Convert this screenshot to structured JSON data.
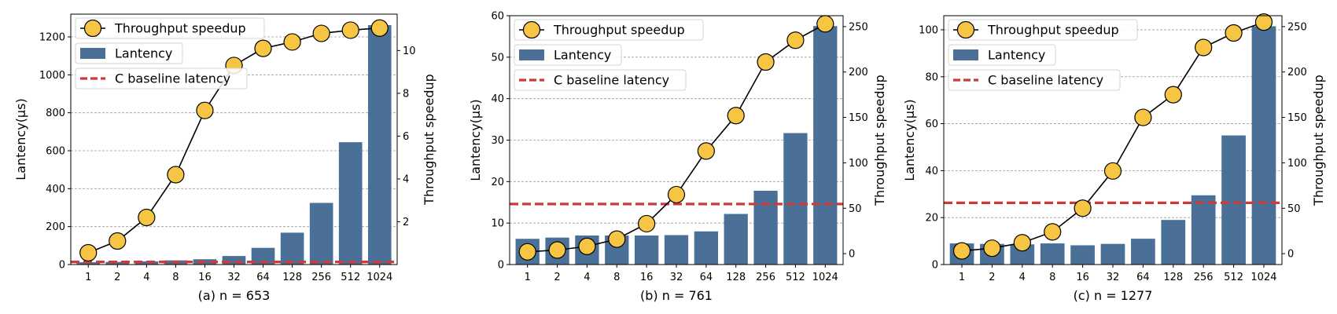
{
  "chart_data": [
    {
      "type": "bar",
      "caption": "(a) n = 653",
      "categories": [
        "1",
        "2",
        "4",
        "8",
        "16",
        "32",
        "64",
        "128",
        "256",
        "512",
        "1024"
      ],
      "ylabel": "Lantency(μs)",
      "y2label": "Throughput speedup",
      "ylim": [
        0,
        1320
      ],
      "y2lim": [
        0,
        11.7
      ],
      "yticks": [
        0,
        200,
        400,
        600,
        800,
        1000,
        1200
      ],
      "y2ticks": [
        2,
        4,
        6,
        8,
        10
      ],
      "grid": "horizontal dashed",
      "legend_position": "top-left",
      "series": [
        {
          "name": "Lantency",
          "kind": "bar",
          "axis": "left",
          "color": "#4a7097",
          "values": [
            12,
            14,
            17,
            22,
            28,
            45,
            88,
            168,
            325,
            645,
            1262
          ]
        },
        {
          "name": "Throughput speedup",
          "kind": "line",
          "axis": "right",
          "color": "#f6c544",
          "values": [
            0.55,
            1.1,
            2.2,
            4.2,
            7.2,
            9.3,
            10.1,
            10.4,
            10.8,
            10.95,
            11.05
          ]
        },
        {
          "name": "C baseline latency",
          "kind": "hline",
          "axis": "left",
          "color": "#cc3a3a",
          "value": 14
        }
      ]
    },
    {
      "type": "bar",
      "caption": "(b) n = 761",
      "categories": [
        "1",
        "2",
        "4",
        "8",
        "16",
        "32",
        "64",
        "128",
        "256",
        "512",
        "1024"
      ],
      "ylabel": "Lantency(μs)",
      "y2label": "Throughput speedup",
      "ylim": [
        0,
        60
      ],
      "y2lim": [
        -12,
        262
      ],
      "yticks": [
        0,
        10,
        20,
        30,
        40,
        50,
        60
      ],
      "y2ticks": [
        0,
        50,
        100,
        150,
        200,
        250
      ],
      "grid": "horizontal dashed",
      "legend_position": "top-left",
      "series": [
        {
          "name": "Lantency",
          "kind": "bar",
          "axis": "left",
          "color": "#4a7097",
          "values": [
            6.2,
            6.5,
            7.0,
            7.0,
            7.0,
            7.1,
            8.0,
            12.2,
            17.8,
            31.7,
            57.5
          ]
        },
        {
          "name": "Throughput speedup",
          "kind": "line",
          "axis": "right",
          "color": "#f6c544",
          "values": [
            2,
            4,
            8,
            16,
            33,
            65,
            113,
            152,
            211,
            235,
            253
          ]
        },
        {
          "name": "C baseline latency",
          "kind": "hline",
          "axis": "left",
          "color": "#cc3a3a",
          "value": 14.6
        }
      ]
    },
    {
      "type": "bar",
      "caption": "(c) n = 1277",
      "categories": [
        "1",
        "2",
        "4",
        "8",
        "16",
        "32",
        "64",
        "128",
        "256",
        "512",
        "1024"
      ],
      "ylabel": "Lantency(μs)",
      "y2label": "Throughput speedup",
      "ylim": [
        0,
        106
      ],
      "y2lim": [
        -12,
        262
      ],
      "yticks": [
        0,
        20,
        40,
        60,
        80,
        100
      ],
      "y2ticks": [
        0,
        50,
        100,
        150,
        200,
        250
      ],
      "grid": "horizontal dashed",
      "legend_position": "top-left",
      "series": [
        {
          "name": "Lantency",
          "kind": "bar",
          "axis": "left",
          "color": "#4a7097",
          "values": [
            9.0,
            8.8,
            8.6,
            9.0,
            8.2,
            8.8,
            11.0,
            19.0,
            29.5,
            55.0,
            101.5
          ]
        },
        {
          "name": "Throughput speedup",
          "kind": "line",
          "axis": "right",
          "color": "#f6c544",
          "values": [
            3,
            6,
            12,
            24,
            50,
            91,
            150,
            175,
            227,
            243,
            255
          ]
        },
        {
          "name": "C baseline latency",
          "kind": "hline",
          "axis": "left",
          "color": "#cc3a3a",
          "value": 26.3
        }
      ]
    }
  ]
}
